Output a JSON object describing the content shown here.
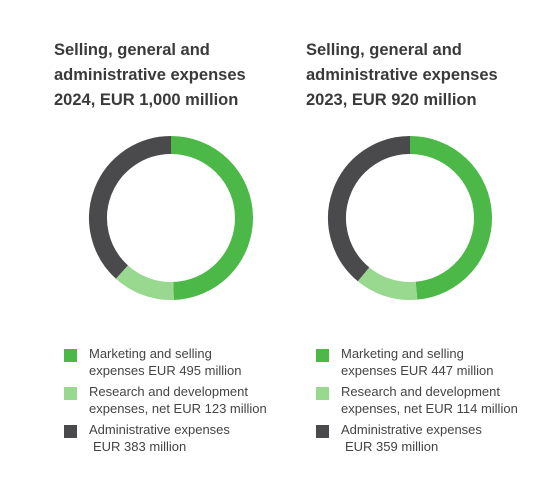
{
  "colors": {
    "marketing": "#4cb848",
    "research": "#98d88f",
    "administrative": "#4a4a4c"
  },
  "chart_data": [
    {
      "type": "pie",
      "variant": "donut",
      "title_lines": [
        "Selling, general and",
        "administrative expenses",
        "2024, EUR 1,000 million"
      ],
      "categories": [
        "Marketing and selling expenses",
        "Research and development expenses, net",
        "Administrative expenses"
      ],
      "values": [
        495,
        123,
        383
      ],
      "unit": "EUR million",
      "legend": [
        [
          "Marketing and selling",
          "expenses EUR 495 million"
        ],
        [
          "Research and development",
          "expenses, net EUR 123 million"
        ],
        [
          "Administrative expenses",
          "EUR 383 million"
        ]
      ],
      "legend_position": "bottom"
    },
    {
      "type": "pie",
      "variant": "donut",
      "title_lines": [
        "Selling, general and",
        "administrative expenses",
        "2023, EUR 920 million"
      ],
      "categories": [
        "Marketing and selling expenses",
        "Research and development expenses, net",
        "Administrative expenses"
      ],
      "values": [
        447,
        114,
        359
      ],
      "unit": "EUR million",
      "legend": [
        [
          "Marketing and selling",
          "expenses EUR 447 million"
        ],
        [
          "Research and development",
          "expenses, net EUR 114 million"
        ],
        [
          "Administrative expenses",
          "EUR 359 million"
        ]
      ],
      "legend_position": "bottom"
    }
  ]
}
